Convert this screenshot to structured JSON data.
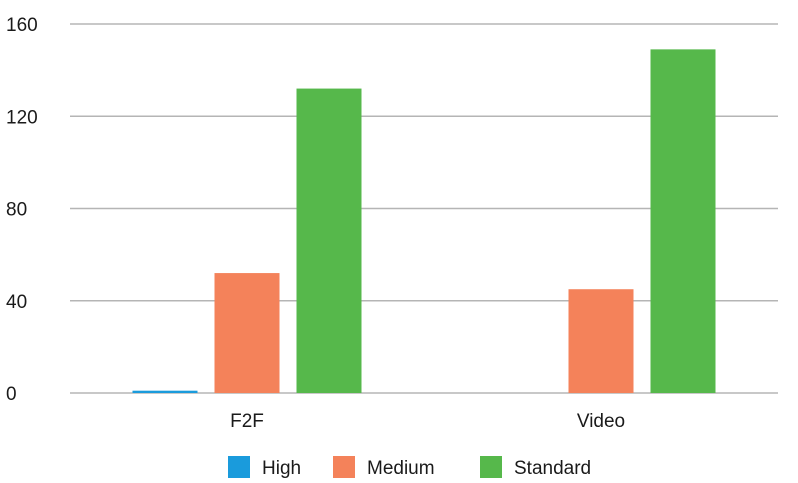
{
  "chart_data": {
    "type": "bar",
    "categories": [
      "F2F",
      "Video"
    ],
    "series": [
      {
        "name": "High",
        "values": [
          1,
          0
        ],
        "color": "#1a9bdc"
      },
      {
        "name": "Medium",
        "values": [
          52,
          45
        ],
        "color": "#f4825a"
      },
      {
        "name": "Standard",
        "values": [
          132,
          149
        ],
        "color": "#56b84b"
      }
    ],
    "yticks": [
      0,
      40,
      80,
      120,
      160
    ],
    "ylim": [
      0,
      160
    ],
    "grid": true,
    "legend_position": "bottom"
  }
}
